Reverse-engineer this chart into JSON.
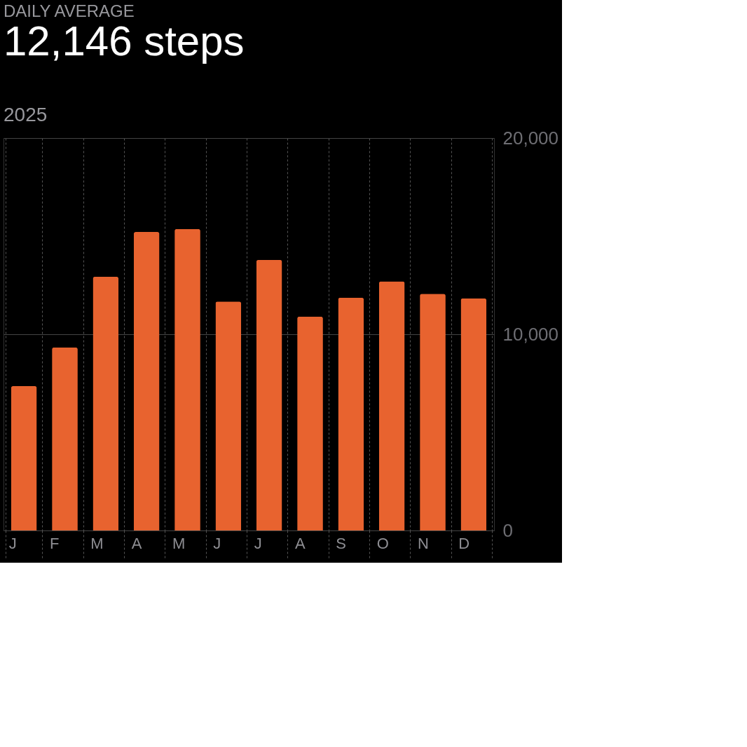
{
  "chart_data": {
    "type": "bar",
    "title": "DAILY AVERAGE",
    "subtitle": "12,146 steps",
    "annotations": [
      "2025"
    ],
    "categories": [
      "J",
      "F",
      "M",
      "A",
      "M",
      "J",
      "J",
      "A",
      "S",
      "O",
      "N",
      "D"
    ],
    "values": [
      7360,
      9330,
      12930,
      15210,
      15370,
      11670,
      13790,
      10900,
      11870,
      12700,
      12060,
      11830
    ],
    "color": "#e8632f",
    "ylim": [
      0,
      20000
    ],
    "yticks": [
      0,
      {
        "value": 10000,
        "label": "10,000"
      },
      {
        "value": 20000,
        "label": "20,000"
      }
    ],
    "grid": true
  }
}
